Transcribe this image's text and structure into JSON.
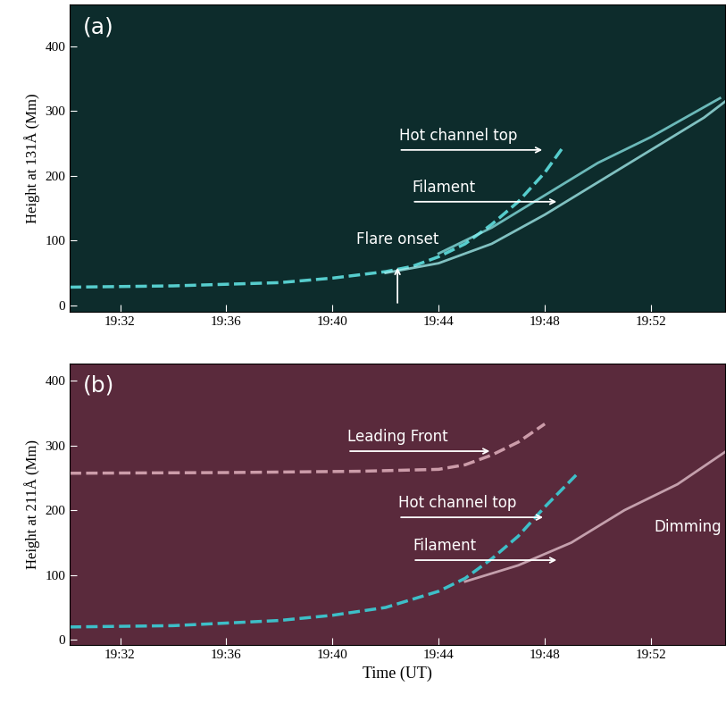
{
  "chart_data": [
    {
      "type": "line",
      "label": "(a)",
      "ylabel": "Height at 131Å (Mm)",
      "color": "#0d2c2c",
      "xlim": [
        1170.1,
        1194.8
      ],
      "xticks": [
        {
          "value": 1172,
          "label": "19:32"
        },
        {
          "value": 1176,
          "label": "19:36"
        },
        {
          "value": 1180,
          "label": "19:40"
        },
        {
          "value": 1184,
          "label": "19:44"
        },
        {
          "value": 1188,
          "label": "19:48"
        },
        {
          "value": 1192,
          "label": "19:52"
        }
      ],
      "ylim": [
        -10,
        465
      ],
      "yticks": [
        0,
        100,
        200,
        300,
        400
      ],
      "series": [
        {
          "color": "#5fe0e0",
          "line_style": "dashed",
          "x": [
            1170.1,
            1174,
            1178,
            1180,
            1182,
            1183,
            1184,
            1185,
            1186,
            1187,
            1188,
            1188.7
          ],
          "values": [
            28,
            30,
            35,
            42,
            52,
            60,
            75,
            95,
            125,
            160,
            205,
            245
          ]
        },
        {
          "color": "#a8f4f4",
          "line_style": "solid",
          "x": [
            1182,
            1184,
            1186,
            1188,
            1190,
            1192,
            1194,
            1194.8
          ],
          "values": [
            50,
            65,
            95,
            140,
            190,
            240,
            290,
            315
          ]
        },
        {
          "color": "#8ceaea",
          "line_style": "solid",
          "x": [
            1184,
            1186,
            1188,
            1190,
            1192,
            1194.6
          ],
          "values": [
            80,
            120,
            170,
            220,
            260,
            320
          ]
        }
      ],
      "annotations": [
        {
          "text": "Hot channel top",
          "x": 1188.0,
          "y": 240,
          "x_text": 1182.5,
          "y_text": 240
        },
        {
          "text": "Filament",
          "x": 1188.54,
          "y": 160,
          "x_text": 1183.0,
          "y_text": 160
        },
        {
          "text": "Flare onset",
          "x": 1182.45,
          "y": 62,
          "x_text": 1182.45,
          "y_text": 0
        }
      ]
    },
    {
      "type": "line",
      "label": "(b)",
      "ylabel": "Height at 211Å (Mm)",
      "xlabel": "Time (UT)",
      "color": "#5a2a3c",
      "xlim": [
        1170.1,
        1194.8
      ],
      "xticks": [
        {
          "value": 1172,
          "label": "19:32"
        },
        {
          "value": 1176,
          "label": "19:36"
        },
        {
          "value": 1180,
          "label": "19:40"
        },
        {
          "value": 1184,
          "label": "19:44"
        },
        {
          "value": 1188,
          "label": "19:48"
        },
        {
          "value": 1192,
          "label": "19:52"
        }
      ],
      "ylim": [
        -8,
        426
      ],
      "yticks": [
        0,
        100,
        200,
        300,
        400
      ],
      "series": [
        {
          "color": "#d9a9b6",
          "line_style": "dashed",
          "x": [
            1170.1,
            1176,
            1181,
            1184,
            1185,
            1186,
            1187,
            1188
          ],
          "values": [
            257,
            258,
            260,
            263,
            270,
            285,
            305,
            333
          ]
        },
        {
          "color": "#3ad0d8",
          "line_style": "dashed",
          "x": [
            1170.1,
            1174,
            1178,
            1180,
            1182,
            1184,
            1185,
            1186,
            1187,
            1188,
            1189.2
          ],
          "values": [
            20,
            22,
            30,
            38,
            50,
            75,
            95,
            125,
            160,
            205,
            255
          ]
        },
        {
          "color": "#e8c8d2",
          "line_style": "solid",
          "x": [
            1185,
            1187,
            1189,
            1191,
            1193,
            1194.8
          ],
          "values": [
            90,
            115,
            150,
            200,
            240,
            290
          ]
        }
      ],
      "annotations": [
        {
          "text": "Leading Front",
          "x": 1186.02,
          "y": 291,
          "x_text": 1180.57,
          "y_text": 291
        },
        {
          "text": "Hot channel top",
          "x": 1188.03,
          "y": 189,
          "x_text": 1182.49,
          "y_text": 189
        },
        {
          "text": "Filament",
          "x": 1188.54,
          "y": 123,
          "x_text": 1183.03,
          "y_text": 123
        },
        {
          "text": "Dimming",
          "x": 1192.1,
          "y": 174
        }
      ]
    }
  ]
}
